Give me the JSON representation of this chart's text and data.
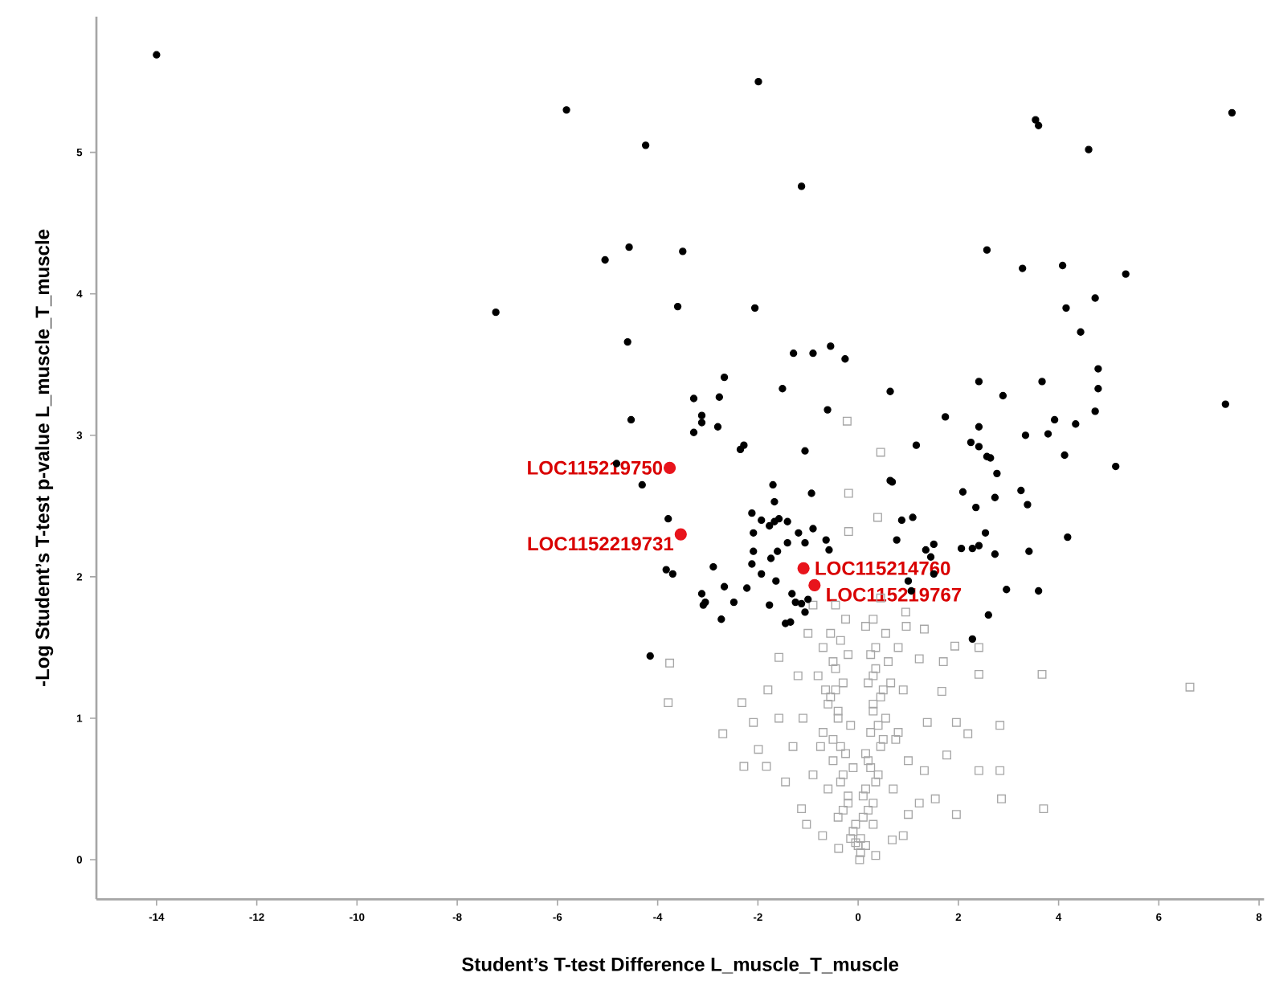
{
  "chart_data": {
    "type": "scatter",
    "xlabel": "Student’s T-test Difference L_muscle_T_muscle",
    "ylabel": "-Log Student’s T-test p-value L_muscle_T_muscle",
    "xlim": [
      -15.2,
      8.1
    ],
    "ylim": [
      -0.28,
      5.96
    ],
    "xticks": [
      -14,
      -12,
      -10,
      -8,
      -6,
      -4,
      -2,
      0,
      2,
      4,
      6,
      8
    ],
    "yticks": [
      0,
      1,
      2,
      3,
      4,
      5
    ],
    "grid": false,
    "series": [
      {
        "color": "#a6a6a6",
        "marker": "square",
        "x": [
          -0.22,
          0.45,
          -0.19,
          0.39,
          -0.19,
          -3.76,
          -3.79,
          -2.7,
          -2.32,
          -2.09,
          -1.99,
          -2.28,
          -1.8,
          -1.58,
          -1.58,
          -1.83,
          -1.45,
          -1.13,
          -1.03,
          -0.71,
          -0.39,
          0.03,
          0.35,
          0.68,
          0.9,
          1.0,
          1.22,
          1.54,
          1.96,
          1.32,
          1.77,
          2.41,
          2.83,
          2.86,
          3.7,
          3.67,
          2.83,
          2.19,
          1.96,
          1.67,
          1.7,
          1.93,
          2.41,
          2.41,
          1.38,
          1.32,
          0.96,
          1.22,
          6.62,
          -0.55,
          -0.5,
          -0.45,
          -0.4,
          -0.35,
          -0.3,
          -0.2,
          -0.1,
          -0.7,
          -0.8,
          -0.6,
          -0.7,
          -0.5,
          -0.6,
          -0.4,
          0.3,
          0.35,
          0.3,
          0.3,
          0.25,
          0.2,
          0.15,
          0.1,
          0.55,
          0.6,
          0.5,
          0.55,
          0.45,
          0.4,
          0.3,
          -1.0,
          -1.2,
          -1.1,
          -1.3,
          -0.9,
          0.8,
          0.9,
          0.8,
          1.0,
          0.7,
          0.0,
          0.05,
          -0.05,
          -0.25,
          -0.35,
          -0.45,
          -0.55,
          -0.2,
          -0.3,
          -0.4,
          -0.5,
          -0.15,
          -0.25,
          -0.35,
          -0.1,
          -0.2,
          -0.3,
          -0.05,
          -0.15,
          0.15,
          0.25,
          0.35,
          0.45,
          0.2,
          0.3,
          0.4,
          0.5,
          0.15,
          0.25,
          0.35,
          0.1,
          0.2,
          0.3,
          0.05,
          0.15,
          -0.65,
          -0.75,
          0.65,
          0.75,
          -0.9,
          0.95,
          -0.45,
          0.45
        ],
        "values": [
          3.1,
          2.88,
          2.59,
          2.42,
          2.32,
          1.39,
          1.11,
          0.89,
          1.11,
          0.97,
          0.78,
          0.66,
          1.2,
          1.0,
          1.43,
          0.66,
          0.55,
          0.36,
          0.25,
          0.17,
          0.08,
          0.0,
          0.03,
          0.14,
          0.17,
          0.32,
          0.4,
          0.43,
          0.32,
          0.63,
          0.74,
          0.63,
          0.63,
          0.43,
          0.36,
          1.31,
          0.95,
          0.89,
          0.97,
          1.19,
          1.4,
          1.51,
          1.5,
          1.31,
          0.97,
          1.63,
          1.65,
          1.42,
          1.22,
          1.6,
          1.4,
          1.2,
          1.0,
          0.8,
          0.6,
          0.4,
          0.2,
          1.5,
          1.3,
          1.1,
          0.9,
          0.7,
          0.5,
          0.3,
          1.7,
          1.5,
          1.3,
          1.1,
          0.9,
          0.7,
          0.5,
          0.3,
          1.6,
          1.4,
          1.2,
          1.0,
          0.8,
          0.6,
          0.4,
          1.6,
          1.3,
          1.0,
          0.8,
          0.6,
          1.5,
          1.2,
          0.9,
          0.7,
          0.5,
          0.1,
          0.05,
          0.12,
          1.7,
          1.55,
          1.35,
          1.15,
          1.45,
          1.25,
          1.05,
          0.85,
          0.95,
          0.75,
          0.55,
          0.65,
          0.45,
          0.35,
          0.25,
          0.15,
          1.65,
          1.45,
          1.35,
          1.15,
          1.25,
          1.05,
          0.95,
          0.85,
          0.75,
          0.65,
          0.55,
          0.45,
          0.35,
          0.25,
          0.15,
          0.1,
          1.2,
          0.8,
          1.25,
          0.85,
          1.8,
          1.75,
          1.8,
          1.85
        ]
      },
      {
        "color": "#000000",
        "marker": "circle",
        "x": [
          -14.0,
          -5.82,
          -4.24,
          -1.99,
          -1.13,
          3.54,
          3.6,
          4.6,
          7.46,
          -3.5,
          -3.6,
          -2.06,
          2.57,
          3.28,
          4.08,
          5.34,
          4.15,
          4.73,
          4.44,
          -1.29,
          -0.9,
          -0.55,
          -0.26,
          -2.67,
          -1.51,
          0.64,
          -3.28,
          -2.77,
          -3.12,
          -3.12,
          -3.28,
          -2.8,
          -2.35,
          -2.28,
          -1.06,
          -0.61,
          1.16,
          1.74,
          2.41,
          2.89,
          3.67,
          4.79,
          4.79,
          4.73,
          2.25,
          2.41,
          2.41,
          2.57,
          2.64,
          2.77,
          3.34,
          3.79,
          3.92,
          4.34,
          4.12,
          5.14,
          7.33,
          0.64,
          -7.23,
          -5.05,
          -4.57,
          -4.6,
          -4.53,
          -4.82,
          -4.31,
          -1.7,
          -0.93,
          0.68,
          -3.79,
          -1.67,
          -2.12,
          -1.93,
          -1.77,
          -1.67,
          -1.58,
          -1.41,
          -1.19,
          -0.9,
          -2.09,
          -1.06,
          -0.64,
          -0.58,
          -2.09,
          -1.61,
          -1.41,
          -1.74,
          -2.12,
          -2.89,
          -3.83,
          -3.7,
          -1.93,
          -1.64,
          -2.67,
          -2.22,
          -3.12,
          -3.05,
          -3.09,
          -2.48,
          -1.77,
          -1.32,
          -1.25,
          -1.13,
          -1.0,
          -1.06,
          -2.73,
          -1.45,
          -1.35,
          -4.15,
          2.09,
          3.25,
          2.73,
          3.38,
          2.35,
          1.09,
          0.87,
          2.54,
          4.18,
          0.77,
          1.35,
          1.51,
          2.06,
          2.28,
          2.41,
          2.73,
          3.41,
          1.45,
          1.51,
          1.0,
          1.06,
          2.96,
          3.6,
          2.6,
          2.28
        ],
        "values": [
          5.69,
          5.3,
          5.05,
          5.5,
          4.76,
          5.23,
          5.19,
          5.02,
          5.28,
          4.3,
          3.91,
          3.9,
          4.31,
          4.18,
          4.2,
          4.14,
          3.9,
          3.97,
          3.73,
          3.58,
          3.58,
          3.63,
          3.54,
          3.41,
          3.33,
          3.31,
          3.26,
          3.27,
          3.14,
          3.09,
          3.02,
          3.06,
          2.9,
          2.93,
          2.89,
          3.18,
          2.93,
          3.13,
          3.38,
          3.28,
          3.38,
          3.47,
          3.33,
          3.17,
          2.95,
          2.92,
          3.06,
          2.85,
          2.84,
          2.73,
          3.0,
          3.01,
          3.11,
          3.08,
          2.86,
          2.78,
          3.22,
          2.68,
          3.87,
          4.24,
          4.33,
          3.66,
          3.11,
          2.8,
          2.65,
          2.65,
          2.59,
          2.67,
          2.41,
          2.53,
          2.45,
          2.4,
          2.36,
          2.39,
          2.41,
          2.39,
          2.31,
          2.34,
          2.31,
          2.24,
          2.26,
          2.19,
          2.18,
          2.18,
          2.24,
          2.13,
          2.09,
          2.07,
          2.05,
          2.02,
          2.02,
          1.97,
          1.93,
          1.92,
          1.88,
          1.82,
          1.8,
          1.82,
          1.8,
          1.88,
          1.82,
          1.81,
          1.84,
          1.75,
          1.7,
          1.67,
          1.68,
          1.44,
          2.6,
          2.61,
          2.56,
          2.51,
          2.49,
          2.42,
          2.4,
          2.31,
          2.28,
          2.26,
          2.19,
          2.23,
          2.2,
          2.2,
          2.22,
          2.16,
          2.18,
          2.14,
          2.02,
          1.97,
          1.9,
          1.91,
          1.9,
          1.73,
          1.56
        ]
      },
      {
        "color": "#e8141c",
        "marker": "circle",
        "x": [
          -3.76,
          -3.54,
          -1.09,
          -0.87
        ],
        "values": [
          2.77,
          2.3,
          2.06,
          1.94
        ]
      }
    ],
    "annotations": [
      {
        "text": "LOC115219750",
        "x": -3.76,
        "y": 2.77
      },
      {
        "text": "LOC1152219731",
        "x": -3.54,
        "y": 2.3
      },
      {
        "text": "LOC115214760",
        "x": -1.09,
        "y": 2.06
      },
      {
        "text": "LOC115219767",
        "x": -0.87,
        "y": 1.94
      }
    ]
  }
}
